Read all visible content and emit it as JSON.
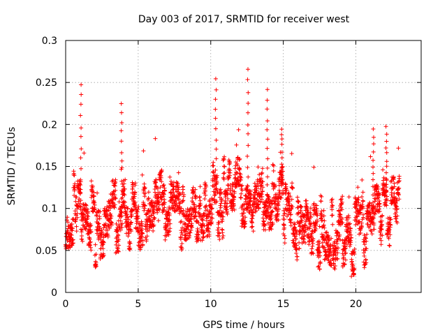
{
  "chart_data": {
    "type": "scatter",
    "title": "Day 003 of 2017, SRMTID for receiver west",
    "xlabel": "GPS time / hours",
    "ylabel": "SRMTID / TECUs",
    "xlim": [
      0,
      24.5
    ],
    "ylim": [
      0,
      0.3
    ],
    "xticks": [
      0,
      5,
      10,
      15,
      20
    ],
    "xtick_labels": [
      "0",
      "5",
      "10",
      "15",
      "20"
    ],
    "yticks": [
      0,
      0.05,
      0.1,
      0.15,
      0.2,
      0.25,
      0.3
    ],
    "ytick_labels": [
      "0",
      "0.05",
      "0.1",
      "0.15",
      "0.2",
      "0.25",
      "0.3"
    ],
    "grid": true,
    "marker": "+",
    "color": "#ff0000",
    "series": [
      {
        "name": "SRMTID",
        "x_range_hours": [
          0,
          23
        ],
        "sampling_interval_hours": 0.008333,
        "points_count": 2760,
        "trend": [
          {
            "x": 0.0,
            "y": 0.095
          },
          {
            "x": 1.0,
            "y": 0.1
          },
          {
            "x": 2.0,
            "y": 0.075
          },
          {
            "x": 3.0,
            "y": 0.085
          },
          {
            "x": 4.0,
            "y": 0.09
          },
          {
            "x": 5.0,
            "y": 0.085
          },
          {
            "x": 6.0,
            "y": 0.1
          },
          {
            "x": 7.0,
            "y": 0.11
          },
          {
            "x": 8.0,
            "y": 0.1
          },
          {
            "x": 9.0,
            "y": 0.105
          },
          {
            "x": 10.0,
            "y": 0.115
          },
          {
            "x": 11.0,
            "y": 0.11
          },
          {
            "x": 12.0,
            "y": 0.115
          },
          {
            "x": 13.0,
            "y": 0.11
          },
          {
            "x": 14.0,
            "y": 0.105
          },
          {
            "x": 15.0,
            "y": 0.115
          },
          {
            "x": 16.0,
            "y": 0.065
          },
          {
            "x": 17.0,
            "y": 0.065
          },
          {
            "x": 18.0,
            "y": 0.07
          },
          {
            "x": 19.0,
            "y": 0.065
          },
          {
            "x": 20.0,
            "y": 0.07
          },
          {
            "x": 21.0,
            "y": 0.09
          },
          {
            "x": 22.0,
            "y": 0.105
          },
          {
            "x": 23.0,
            "y": 0.1
          }
        ],
        "spikes": [
          {
            "x": 1.05,
            "y": 0.25
          },
          {
            "x": 3.85,
            "y": 0.228
          },
          {
            "x": 10.35,
            "y": 0.257
          },
          {
            "x": 12.55,
            "y": 0.267
          },
          {
            "x": 13.9,
            "y": 0.242
          },
          {
            "x": 14.9,
            "y": 0.198
          },
          {
            "x": 21.2,
            "y": 0.195
          },
          {
            "x": 22.1,
            "y": 0.198
          }
        ],
        "min_value": 0.013,
        "max_value": 0.267
      }
    ]
  }
}
